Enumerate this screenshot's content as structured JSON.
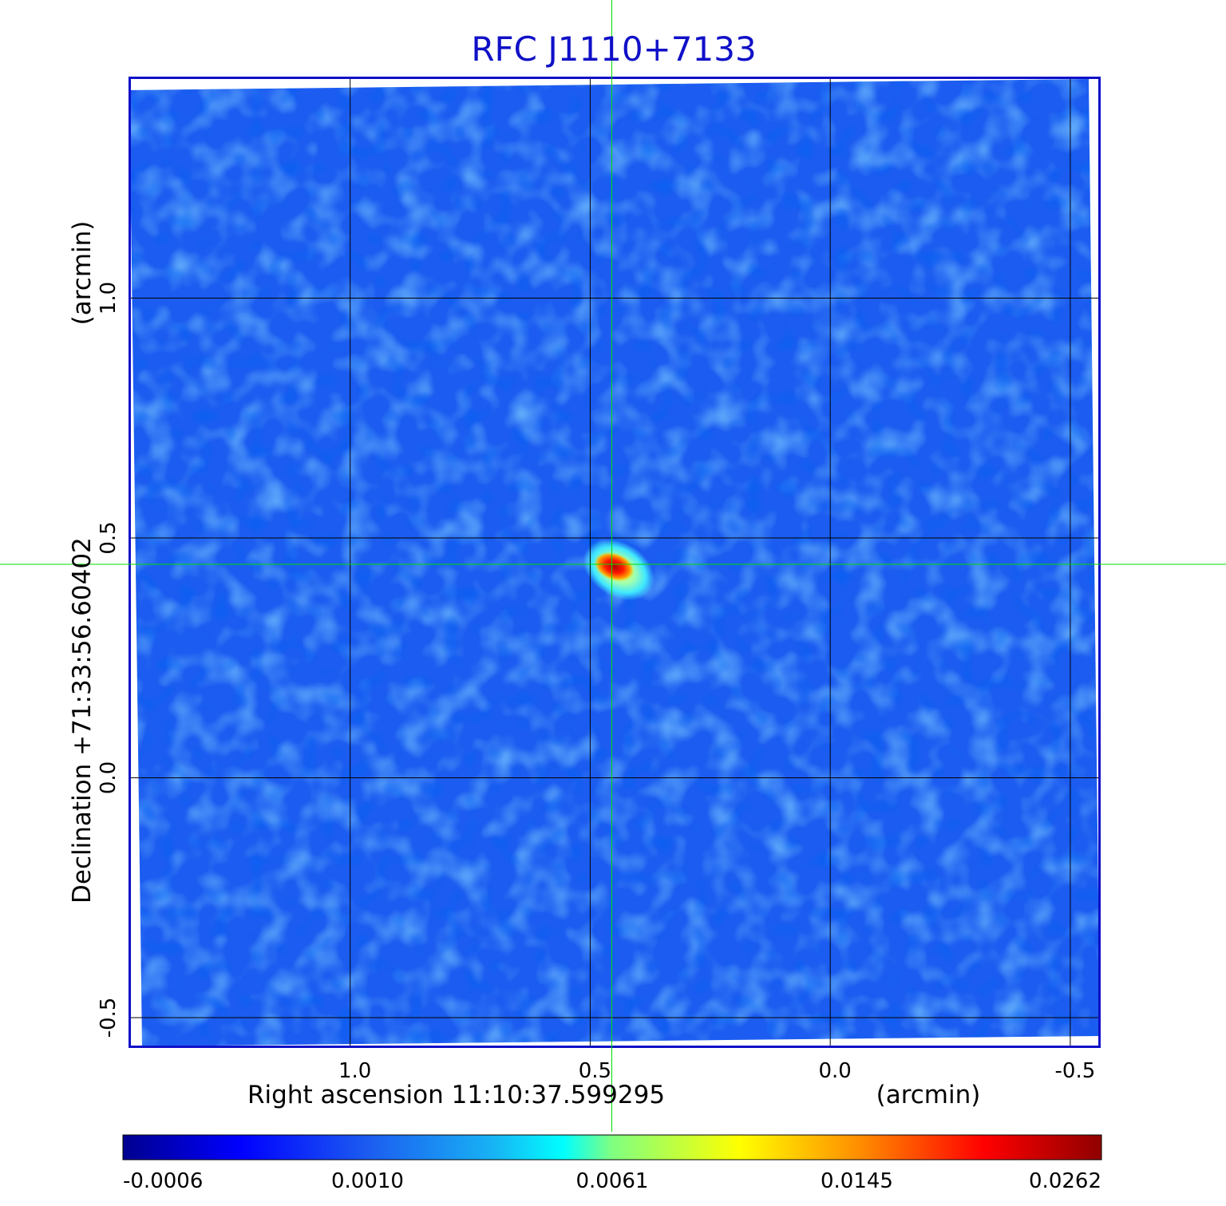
{
  "chart_data": {
    "type": "heatmap",
    "title": "RFC J1110+7133",
    "xlabel": "Right ascension  11:10:37.599295",
    "xunit": "(arcmin)",
    "ylabel": "Declination  +71:33:56.60402",
    "yunit": "(arcmin)",
    "xlim": [
      1.46,
      -0.56
    ],
    "ylim": [
      -0.56,
      1.46
    ],
    "x_ticks": [
      1.0,
      0.5,
      0.0,
      -0.5
    ],
    "x_tick_labels": [
      "1.0",
      "0.5",
      "0.0",
      "-0.5"
    ],
    "y_ticks": [
      1.0,
      0.5,
      0.0,
      -0.5
    ],
    "y_tick_labels": [
      "1.0",
      "0.5",
      "0.0",
      "-0.5"
    ],
    "grid": true,
    "crosshair": {
      "x": 0.455,
      "y": 0.445
    },
    "source_peak": {
      "x": 0.45,
      "y": 0.44,
      "value": 0.0262
    },
    "colorbar": {
      "position": "bottom",
      "ticks": [
        -0.0006,
        0.001,
        0.0061,
        0.0145,
        0.0262
      ],
      "tick_labels": [
        "-0.0006",
        "0.0010",
        "0.0061",
        "0.0145",
        "0.0262"
      ]
    },
    "colors": {
      "title": "#1010c8",
      "frame": "#1010c8",
      "grid": "#000000",
      "crosshair": "#00dd00",
      "background": "#1c5cf0"
    }
  }
}
